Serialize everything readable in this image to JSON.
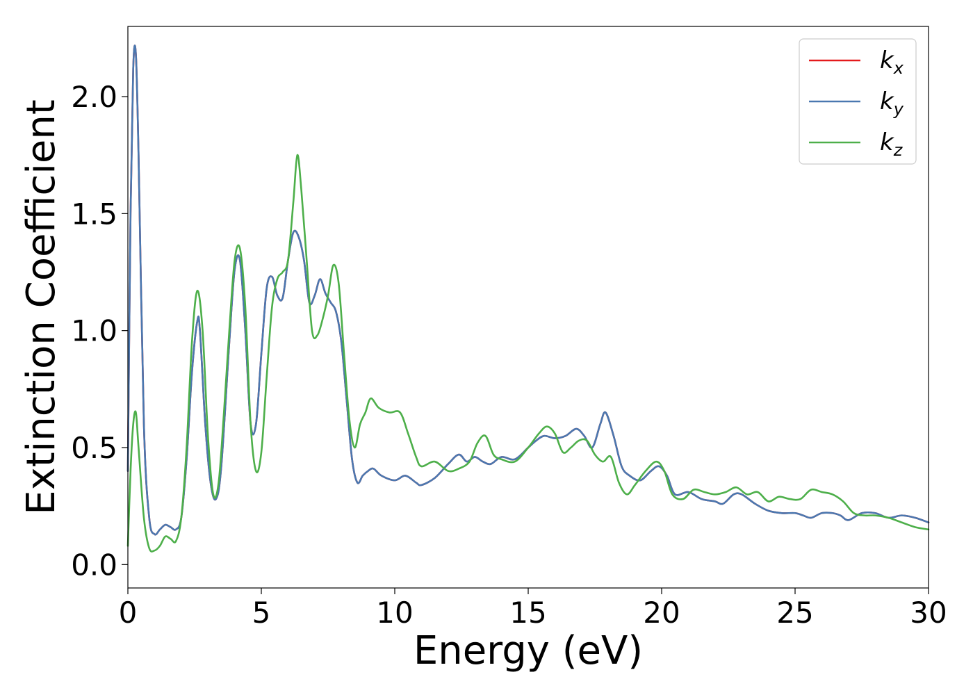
{
  "chart_data": {
    "type": "line",
    "title": "",
    "xlabel": "Energy (eV)",
    "ylabel": "Extinction Coefficient",
    "xlim": [
      0,
      30
    ],
    "ylim": [
      -0.1,
      2.3
    ],
    "xticks": [
      0,
      5,
      10,
      15,
      20,
      25,
      30
    ],
    "yticks": [
      0.0,
      0.5,
      1.0,
      1.5,
      2.0
    ],
    "xtick_labels": [
      "0",
      "5",
      "10",
      "15",
      "20",
      "25",
      "30"
    ],
    "ytick_labels": [
      "0.0",
      "0.5",
      "1.0",
      "1.5",
      "2.0"
    ],
    "grid": false,
    "legend_position": "top-right",
    "series": [
      {
        "name": "k_x",
        "legend_base": "k",
        "legend_sub": "x",
        "color": "#e41a1c",
        "x": [
          0,
          0.1,
          0.2,
          0.3,
          0.4,
          0.6,
          0.8,
          1.0,
          1.2,
          1.4,
          1.6,
          1.8,
          2.0,
          2.2,
          2.4,
          2.6,
          2.7,
          2.9,
          3.1,
          3.3,
          3.5,
          3.8,
          4.0,
          4.2,
          4.4,
          4.6,
          4.8,
          5.0,
          5.2,
          5.4,
          5.6,
          5.8,
          6.0,
          6.2,
          6.4,
          6.6,
          6.8,
          7.0,
          7.2,
          7.4,
          7.6,
          7.8,
          8.0,
          8.2,
          8.4,
          8.6,
          8.8,
          9.0,
          9.2,
          9.5,
          10.0,
          10.4,
          10.8,
          11.0,
          11.5,
          12.0,
          12.4,
          12.7,
          13.0,
          13.3,
          13.6,
          14.0,
          14.5,
          15.0,
          15.3,
          15.6,
          16.0,
          16.4,
          16.8,
          17.1,
          17.4,
          17.7,
          17.9,
          18.2,
          18.5,
          18.8,
          19.2,
          19.6,
          19.9,
          20.2,
          20.5,
          21.0,
          21.5,
          22.0,
          22.3,
          22.7,
          23.0,
          23.5,
          24.0,
          24.5,
          25.0,
          25.3,
          25.6,
          26.0,
          26.4,
          26.7,
          27.0,
          27.5,
          28.0,
          28.5,
          29.0,
          29.5,
          30.0
        ],
        "y": [
          0.4,
          1.5,
          2.12,
          2.18,
          1.75,
          0.6,
          0.2,
          0.13,
          0.15,
          0.17,
          0.16,
          0.15,
          0.2,
          0.45,
          0.82,
          1.04,
          1.0,
          0.6,
          0.35,
          0.28,
          0.42,
          0.95,
          1.26,
          1.3,
          1.0,
          0.6,
          0.6,
          0.9,
          1.18,
          1.23,
          1.15,
          1.14,
          1.3,
          1.42,
          1.4,
          1.3,
          1.12,
          1.15,
          1.22,
          1.16,
          1.12,
          1.08,
          0.95,
          0.7,
          0.45,
          0.35,
          0.38,
          0.4,
          0.41,
          0.38,
          0.36,
          0.38,
          0.35,
          0.34,
          0.37,
          0.43,
          0.47,
          0.44,
          0.46,
          0.44,
          0.43,
          0.46,
          0.45,
          0.5,
          0.53,
          0.55,
          0.54,
          0.55,
          0.58,
          0.55,
          0.5,
          0.6,
          0.65,
          0.55,
          0.42,
          0.38,
          0.36,
          0.4,
          0.42,
          0.38,
          0.3,
          0.31,
          0.28,
          0.27,
          0.26,
          0.3,
          0.3,
          0.26,
          0.23,
          0.22,
          0.22,
          0.21,
          0.2,
          0.22,
          0.22,
          0.21,
          0.19,
          0.22,
          0.22,
          0.2,
          0.21,
          0.2,
          0.18
        ]
      },
      {
        "name": "k_y",
        "legend_base": "k",
        "legend_sub": "y",
        "color": "#4a78b0",
        "x": [
          0,
          0.1,
          0.2,
          0.3,
          0.4,
          0.6,
          0.8,
          1.0,
          1.2,
          1.4,
          1.6,
          1.8,
          2.0,
          2.2,
          2.4,
          2.6,
          2.7,
          2.9,
          3.1,
          3.3,
          3.5,
          3.8,
          4.0,
          4.2,
          4.4,
          4.6,
          4.8,
          5.0,
          5.2,
          5.4,
          5.6,
          5.8,
          6.0,
          6.2,
          6.4,
          6.6,
          6.8,
          7.0,
          7.2,
          7.4,
          7.6,
          7.8,
          8.0,
          8.2,
          8.4,
          8.6,
          8.8,
          9.0,
          9.2,
          9.5,
          10.0,
          10.4,
          10.8,
          11.0,
          11.5,
          12.0,
          12.4,
          12.7,
          13.0,
          13.3,
          13.6,
          14.0,
          14.5,
          15.0,
          15.3,
          15.6,
          16.0,
          16.4,
          16.8,
          17.1,
          17.4,
          17.7,
          17.9,
          18.2,
          18.5,
          18.8,
          19.2,
          19.6,
          19.9,
          20.2,
          20.5,
          21.0,
          21.5,
          22.0,
          22.3,
          22.7,
          23.0,
          23.5,
          24.0,
          24.5,
          25.0,
          25.3,
          25.6,
          26.0,
          26.4,
          26.7,
          27.0,
          27.5,
          28.0,
          28.5,
          29.0,
          29.5,
          30.0
        ],
        "y": [
          0.4,
          1.5,
          2.12,
          2.18,
          1.75,
          0.6,
          0.2,
          0.13,
          0.15,
          0.17,
          0.16,
          0.15,
          0.2,
          0.45,
          0.82,
          1.04,
          1.0,
          0.6,
          0.35,
          0.28,
          0.42,
          0.95,
          1.26,
          1.3,
          1.0,
          0.6,
          0.6,
          0.9,
          1.18,
          1.23,
          1.15,
          1.14,
          1.3,
          1.42,
          1.4,
          1.3,
          1.12,
          1.15,
          1.22,
          1.16,
          1.12,
          1.08,
          0.95,
          0.7,
          0.45,
          0.35,
          0.38,
          0.4,
          0.41,
          0.38,
          0.36,
          0.38,
          0.35,
          0.34,
          0.37,
          0.43,
          0.47,
          0.44,
          0.46,
          0.44,
          0.43,
          0.46,
          0.45,
          0.5,
          0.53,
          0.55,
          0.54,
          0.55,
          0.58,
          0.55,
          0.5,
          0.6,
          0.65,
          0.55,
          0.42,
          0.38,
          0.36,
          0.4,
          0.42,
          0.38,
          0.3,
          0.31,
          0.28,
          0.27,
          0.26,
          0.3,
          0.3,
          0.26,
          0.23,
          0.22,
          0.22,
          0.21,
          0.2,
          0.22,
          0.22,
          0.21,
          0.19,
          0.22,
          0.22,
          0.2,
          0.21,
          0.2,
          0.18
        ]
      },
      {
        "name": "k_z",
        "legend_base": "k",
        "legend_sub": "z",
        "color": "#4daf4a",
        "x": [
          0,
          0.1,
          0.2,
          0.3,
          0.4,
          0.6,
          0.8,
          1.0,
          1.2,
          1.4,
          1.6,
          1.8,
          2.0,
          2.2,
          2.4,
          2.6,
          2.8,
          3.0,
          3.2,
          3.4,
          3.6,
          3.8,
          4.0,
          4.2,
          4.4,
          4.6,
          4.8,
          5.0,
          5.2,
          5.4,
          5.6,
          5.8,
          6.0,
          6.2,
          6.35,
          6.5,
          6.7,
          6.9,
          7.1,
          7.3,
          7.5,
          7.7,
          7.9,
          8.1,
          8.3,
          8.5,
          8.7,
          8.9,
          9.1,
          9.4,
          9.8,
          10.2,
          10.5,
          10.8,
          11.0,
          11.5,
          12.0,
          12.4,
          12.8,
          13.1,
          13.4,
          13.7,
          14.0,
          14.5,
          15.0,
          15.4,
          15.7,
          16.0,
          16.3,
          16.6,
          16.9,
          17.2,
          17.5,
          17.8,
          18.1,
          18.4,
          18.7,
          19.0,
          19.4,
          19.8,
          20.1,
          20.4,
          20.8,
          21.2,
          21.6,
          22.0,
          22.4,
          22.8,
          23.2,
          23.6,
          24.0,
          24.4,
          24.8,
          25.2,
          25.6,
          26.0,
          26.4,
          26.8,
          27.2,
          27.6,
          28.0,
          28.5,
          29.0,
          29.5,
          30.0
        ],
        "y": [
          0.08,
          0.4,
          0.6,
          0.65,
          0.5,
          0.2,
          0.07,
          0.06,
          0.08,
          0.12,
          0.11,
          0.1,
          0.2,
          0.5,
          0.95,
          1.17,
          1.0,
          0.55,
          0.3,
          0.35,
          0.65,
          1.0,
          1.3,
          1.35,
          1.1,
          0.6,
          0.4,
          0.48,
          0.8,
          1.1,
          1.22,
          1.25,
          1.3,
          1.55,
          1.75,
          1.6,
          1.3,
          1.0,
          0.98,
          1.05,
          1.15,
          1.28,
          1.2,
          0.9,
          0.62,
          0.5,
          0.6,
          0.65,
          0.71,
          0.67,
          0.65,
          0.65,
          0.56,
          0.46,
          0.42,
          0.44,
          0.4,
          0.41,
          0.44,
          0.52,
          0.55,
          0.47,
          0.45,
          0.44,
          0.5,
          0.56,
          0.59,
          0.56,
          0.48,
          0.5,
          0.53,
          0.53,
          0.47,
          0.44,
          0.46,
          0.35,
          0.3,
          0.34,
          0.4,
          0.44,
          0.4,
          0.3,
          0.28,
          0.32,
          0.31,
          0.3,
          0.31,
          0.33,
          0.3,
          0.31,
          0.27,
          0.29,
          0.28,
          0.28,
          0.32,
          0.31,
          0.3,
          0.27,
          0.22,
          0.21,
          0.21,
          0.2,
          0.18,
          0.16,
          0.15
        ]
      }
    ]
  }
}
